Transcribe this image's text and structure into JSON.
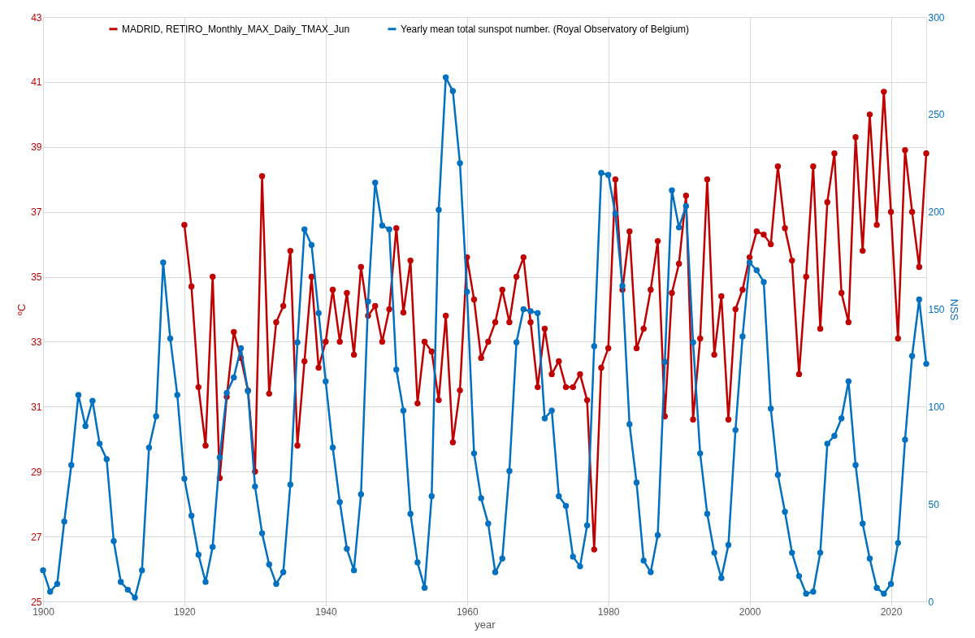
{
  "chart_data": {
    "type": "line",
    "xlabel": "year",
    "ylabel": "ºC",
    "y2label": "NSS",
    "xlim": [
      1900,
      2025
    ],
    "xticks": [
      1900,
      1920,
      1940,
      1960,
      1980,
      2000,
      2020
    ],
    "ylim": [
      25,
      43
    ],
    "yticks": [
      25,
      27,
      29,
      31,
      33,
      35,
      37,
      39,
      41,
      43
    ],
    "y2lim": [
      0,
      300
    ],
    "y2ticks": [
      0,
      50,
      100,
      150,
      200,
      250,
      300
    ],
    "grid": true,
    "legend": "top",
    "marker": "circle",
    "line_style": "solid",
    "series": [
      {
        "name": "MADRID, RETIRO_Monthly_MAX_Daily_TMAX_Jun",
        "color": "#c00000",
        "x": [
          1920,
          1921,
          1922,
          1923,
          1924,
          1925,
          1926,
          1927,
          1928,
          1929,
          1930,
          1931,
          1932,
          1933,
          1934,
          1935,
          1936,
          1937,
          1938,
          1939,
          1940,
          1941,
          1942,
          1943,
          1944,
          1945,
          1946,
          1947,
          1948,
          1949,
          1950,
          1951,
          1952,
          1953,
          1954,
          1955,
          1956,
          1957,
          1958,
          1959,
          1960,
          1961,
          1962,
          1963,
          1964,
          1965,
          1966,
          1967,
          1968,
          1969,
          1970,
          1971,
          1972,
          1973,
          1974,
          1975,
          1976,
          1977,
          1978,
          1979,
          1980,
          1981,
          1982,
          1983,
          1984,
          1985,
          1986,
          1987,
          1988,
          1989,
          1990,
          1991,
          1992,
          1993,
          1994,
          1995,
          1996,
          1997,
          1998,
          1999,
          2000,
          2001,
          2002,
          2003,
          2004,
          2005,
          2006,
          2007,
          2008,
          2009,
          2010,
          2011,
          2012,
          2013,
          2014,
          2015,
          2016,
          2017,
          2018,
          2019,
          2020,
          2021,
          2022,
          2023,
          2024,
          2025
        ],
        "values": [
          36.6,
          34.7,
          31.6,
          29.8,
          35.0,
          28.8,
          31.3,
          33.3,
          32.5,
          31.5,
          29.0,
          38.1,
          31.4,
          33.6,
          34.1,
          35.8,
          29.8,
          32.4,
          35.0,
          32.2,
          33.0,
          34.6,
          33.0,
          34.5,
          32.6,
          35.3,
          33.8,
          34.1,
          33.0,
          34.0,
          36.5,
          33.9,
          35.5,
          31.1,
          33.0,
          32.7,
          31.2,
          33.8,
          29.9,
          31.5,
          35.6,
          34.3,
          32.5,
          33.0,
          33.6,
          34.6,
          33.6,
          35.0,
          35.6,
          33.6,
          31.6,
          33.4,
          32.0,
          32.4,
          31.6,
          31.6,
          32.0,
          31.2,
          26.6,
          32.2,
          32.8,
          38.0,
          34.6,
          36.4,
          32.8,
          33.4,
          34.6,
          36.1,
          30.7,
          34.5,
          35.4,
          37.5,
          30.6,
          33.1,
          38.0,
          32.6,
          34.4,
          30.6,
          34.0,
          34.6,
          35.6,
          36.4,
          36.3,
          36.0,
          38.4,
          36.5,
          35.5,
          32.0,
          35.0,
          38.4,
          33.4,
          37.3,
          38.8,
          34.5,
          33.6,
          39.3,
          35.8,
          40.0,
          36.6,
          40.7,
          37.0,
          33.1,
          38.9,
          37.0,
          35.3,
          38.8
        ]
      },
      {
        "name": "Yearly mean total sunspot number. (Royal Observatory of Belgium)",
        "color": "#0070c0",
        "axis": "y2",
        "x": [
          1900,
          1901,
          1902,
          1903,
          1904,
          1905,
          1906,
          1907,
          1908,
          1909,
          1910,
          1911,
          1912,
          1913,
          1914,
          1915,
          1916,
          1917,
          1918,
          1919,
          1920,
          1921,
          1922,
          1923,
          1924,
          1925,
          1926,
          1927,
          1928,
          1929,
          1930,
          1931,
          1932,
          1933,
          1934,
          1935,
          1936,
          1937,
          1938,
          1939,
          1940,
          1941,
          1942,
          1943,
          1944,
          1945,
          1946,
          1947,
          1948,
          1949,
          1950,
          1951,
          1952,
          1953,
          1954,
          1955,
          1956,
          1957,
          1958,
          1959,
          1960,
          1961,
          1962,
          1963,
          1964,
          1965,
          1966,
          1967,
          1968,
          1969,
          1970,
          1971,
          1972,
          1973,
          1974,
          1975,
          1976,
          1977,
          1978,
          1979,
          1980,
          1981,
          1982,
          1983,
          1984,
          1985,
          1986,
          1987,
          1988,
          1989,
          1990,
          1991,
          1992,
          1993,
          1994,
          1995,
          1996,
          1997,
          1998,
          1999,
          2000,
          2001,
          2002,
          2003,
          2004,
          2005,
          2006,
          2007,
          2008,
          2009,
          2010,
          2011,
          2012,
          2013,
          2014,
          2015,
          2016,
          2017,
          2018,
          2019,
          2020,
          2021,
          2022,
          2023,
          2024,
          2025
        ],
        "values": [
          16,
          5,
          9,
          41,
          70,
          106,
          90,
          103,
          81,
          73,
          31,
          10,
          6,
          2,
          16,
          79,
          95,
          174,
          135,
          106,
          63,
          44,
          24,
          10,
          28,
          74,
          107,
          115,
          130,
          108,
          59,
          35,
          19,
          9,
          15,
          60,
          133,
          191,
          183,
          148,
          113,
          79,
          51,
          27,
          16,
          55,
          154,
          215,
          193,
          191,
          119,
          98,
          45,
          20,
          7,
          54,
          201,
          269,
          262,
          225,
          159,
          76,
          53,
          40,
          15,
          22,
          67,
          133,
          150,
          149,
          148,
          94,
          98,
          54,
          49,
          23,
          18,
          39,
          131,
          220,
          219,
          199,
          162,
          91,
          61,
          21,
          15,
          34,
          123,
          211,
          192,
          203,
          133,
          76,
          45,
          25,
          12,
          29,
          88,
          136,
          174,
          170,
          164,
          99,
          65,
          46,
          25,
          13,
          4,
          5,
          25,
          81,
          85,
          94,
          113,
          70,
          40,
          22,
          7,
          4,
          9,
          30,
          83,
          126,
          155,
          122
        ]
      }
    ]
  }
}
